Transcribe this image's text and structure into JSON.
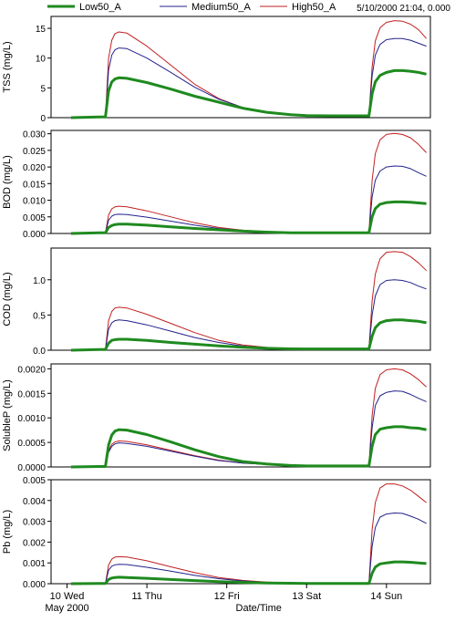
{
  "cursor_readout": "5/10/2000 21:04, 0.000",
  "legend": [
    {
      "name": "Low50_A",
      "color": "#1f8a1f",
      "width": 3
    },
    {
      "name": "Medium50_A",
      "color": "#22228b",
      "width": 1
    },
    {
      "name": "High50_A",
      "color": "#c02020",
      "width": 1
    }
  ],
  "x_axis": {
    "label": "Date/Time",
    "ticks": [
      {
        "day": 0,
        "label": "10 Wed"
      },
      {
        "day": 1,
        "label": "11 Thu"
      },
      {
        "day": 2,
        "label": "12 Fri"
      },
      {
        "day": 3,
        "label": "13 Sat"
      },
      {
        "day": 4,
        "label": "14 Sun"
      }
    ],
    "sublabel": "May 2000",
    "range_days": [
      -0.2,
      4.55
    ]
  },
  "chart_data": [
    {
      "type": "line",
      "ylabel": "TSS (mg/L)",
      "ylim": [
        0,
        17
      ],
      "yticks": [
        0,
        5,
        10,
        15
      ],
      "ytick_labels": [
        "0",
        "5",
        "10",
        "15"
      ],
      "x_units": "days since 10 May 2000 00:00",
      "series": [
        {
          "name": "Low50_A",
          "x": [
            0.05,
            0.4,
            0.48,
            0.52,
            0.56,
            0.6,
            0.65,
            0.75,
            1.0,
            1.3,
            1.6,
            1.9,
            2.2,
            2.5,
            2.8,
            3.0,
            3.3,
            3.6,
            3.78,
            3.82,
            3.86,
            3.92,
            4.0,
            4.1,
            4.2,
            4.3,
            4.4,
            4.5
          ],
          "values": [
            0,
            0.1,
            0.1,
            4.5,
            6.0,
            6.5,
            6.7,
            6.6,
            5.9,
            4.8,
            3.6,
            2.6,
            1.6,
            0.9,
            0.5,
            0.35,
            0.3,
            0.3,
            0.3,
            4.0,
            6.0,
            7.1,
            7.6,
            7.9,
            7.9,
            7.8,
            7.6,
            7.3
          ]
        },
        {
          "name": "Medium50_A",
          "x": [
            0.05,
            0.4,
            0.48,
            0.52,
            0.56,
            0.6,
            0.65,
            0.75,
            1.0,
            1.3,
            1.6,
            1.9,
            2.2,
            2.5,
            2.8,
            3.0,
            3.3,
            3.6,
            3.78,
            3.82,
            3.86,
            3.92,
            4.0,
            4.1,
            4.2,
            4.3,
            4.4,
            4.5
          ],
          "values": [
            0,
            0.1,
            0.1,
            8.0,
            10.5,
            11.4,
            11.7,
            11.6,
            10.0,
            7.6,
            5.1,
            3.1,
            1.7,
            0.9,
            0.5,
            0.35,
            0.3,
            0.3,
            0.3,
            7.0,
            10.5,
            12.3,
            13.1,
            13.3,
            13.3,
            13.0,
            12.5,
            12.0
          ]
        },
        {
          "name": "High50_A",
          "x": [
            0.05,
            0.4,
            0.48,
            0.52,
            0.56,
            0.6,
            0.65,
            0.75,
            1.0,
            1.3,
            1.6,
            1.9,
            2.2,
            2.5,
            2.8,
            3.0,
            3.3,
            3.6,
            3.78,
            3.82,
            3.86,
            3.92,
            4.0,
            4.1,
            4.2,
            4.3,
            4.4,
            4.5
          ],
          "values": [
            0,
            0.1,
            0.1,
            10.0,
            13.0,
            14.1,
            14.4,
            14.2,
            12.0,
            8.8,
            5.6,
            3.2,
            1.7,
            0.9,
            0.5,
            0.35,
            0.3,
            0.3,
            0.3,
            8.5,
            12.9,
            15.1,
            16.0,
            16.3,
            16.2,
            15.7,
            14.8,
            13.3
          ]
        }
      ]
    },
    {
      "type": "line",
      "ylabel": "BOD (mg/L)",
      "ylim": [
        0,
        0.031
      ],
      "yticks": [
        0,
        0.005,
        0.01,
        0.015,
        0.02,
        0.025,
        0.03
      ],
      "ytick_labels": [
        "0.000",
        "0.005",
        "0.010",
        "0.015",
        "0.020",
        "0.025",
        "0.030"
      ],
      "x_units": "days since 10 May 2000 00:00",
      "series": [
        {
          "name": "Low50_A",
          "x": [
            0.05,
            0.4,
            0.48,
            0.52,
            0.56,
            0.6,
            0.65,
            0.75,
            1.0,
            1.3,
            1.6,
            1.9,
            2.2,
            2.5,
            2.8,
            3.0,
            3.3,
            3.6,
            3.78,
            3.82,
            3.86,
            3.92,
            4.0,
            4.1,
            4.2,
            4.3,
            4.4,
            4.5
          ],
          "values": [
            0,
            0.0002,
            0.0002,
            0.0018,
            0.0024,
            0.0027,
            0.0028,
            0.0028,
            0.0025,
            0.002,
            0.0015,
            0.0011,
            0.0007,
            0.0004,
            0.0002,
            0.0002,
            0.0002,
            0.0002,
            0.0002,
            0.005,
            0.0075,
            0.0088,
            0.0093,
            0.0095,
            0.0095,
            0.0094,
            0.0092,
            0.009
          ]
        },
        {
          "name": "Medium50_A",
          "x": [
            0.05,
            0.4,
            0.48,
            0.52,
            0.56,
            0.6,
            0.65,
            0.75,
            1.0,
            1.3,
            1.6,
            1.9,
            2.2,
            2.5,
            2.8,
            3.0,
            3.3,
            3.6,
            3.78,
            3.82,
            3.86,
            3.92,
            4.0,
            4.1,
            4.2,
            4.3,
            4.4,
            4.5
          ],
          "values": [
            0,
            0.0002,
            0.0002,
            0.004,
            0.0052,
            0.0057,
            0.0058,
            0.0057,
            0.0049,
            0.0037,
            0.0025,
            0.0015,
            0.0009,
            0.0005,
            0.0002,
            0.0002,
            0.0002,
            0.0002,
            0.0002,
            0.011,
            0.016,
            0.0188,
            0.02,
            0.0203,
            0.0202,
            0.0195,
            0.0183,
            0.0172
          ]
        },
        {
          "name": "High50_A",
          "x": [
            0.05,
            0.4,
            0.48,
            0.52,
            0.56,
            0.6,
            0.65,
            0.75,
            1.0,
            1.3,
            1.6,
            1.9,
            2.2,
            2.5,
            2.8,
            3.0,
            3.3,
            3.6,
            3.78,
            3.82,
            3.86,
            3.92,
            4.0,
            4.1,
            4.2,
            4.3,
            4.4,
            4.5
          ],
          "values": [
            0,
            0.0002,
            0.0002,
            0.0056,
            0.0074,
            0.008,
            0.0082,
            0.008,
            0.0068,
            0.005,
            0.0032,
            0.0018,
            0.001,
            0.0005,
            0.0002,
            0.0002,
            0.0002,
            0.0002,
            0.0002,
            0.016,
            0.024,
            0.0282,
            0.0298,
            0.0301,
            0.0298,
            0.0288,
            0.0268,
            0.0243
          ]
        }
      ]
    },
    {
      "type": "line",
      "ylabel": "COD (mg/L)",
      "ylim": [
        0,
        1.45
      ],
      "yticks": [
        0,
        0.5,
        1.0
      ],
      "ytick_labels": [
        "0.0",
        "0.5",
        "1.0"
      ],
      "x_units": "days since 10 May 2000 00:00",
      "series": [
        {
          "name": "Low50_A",
          "x": [
            0.05,
            0.4,
            0.48,
            0.52,
            0.56,
            0.6,
            0.65,
            0.75,
            1.0,
            1.3,
            1.6,
            1.9,
            2.2,
            2.5,
            2.8,
            3.0,
            3.3,
            3.6,
            3.78,
            3.82,
            3.86,
            3.92,
            4.0,
            4.1,
            4.2,
            4.3,
            4.4,
            4.5
          ],
          "values": [
            0,
            0.01,
            0.01,
            0.1,
            0.14,
            0.15,
            0.155,
            0.155,
            0.14,
            0.11,
            0.085,
            0.062,
            0.042,
            0.027,
            0.02,
            0.018,
            0.018,
            0.018,
            0.018,
            0.2,
            0.32,
            0.39,
            0.42,
            0.43,
            0.43,
            0.42,
            0.41,
            0.39
          ]
        },
        {
          "name": "Medium50_A",
          "x": [
            0.05,
            0.4,
            0.48,
            0.52,
            0.56,
            0.6,
            0.65,
            0.75,
            1.0,
            1.3,
            1.6,
            1.9,
            2.2,
            2.5,
            2.8,
            3.0,
            3.3,
            3.6,
            3.78,
            3.82,
            3.86,
            3.92,
            4.0,
            4.1,
            4.2,
            4.3,
            4.4,
            4.5
          ],
          "values": [
            0,
            0.01,
            0.01,
            0.3,
            0.39,
            0.42,
            0.43,
            0.42,
            0.36,
            0.27,
            0.18,
            0.11,
            0.06,
            0.035,
            0.022,
            0.018,
            0.018,
            0.018,
            0.018,
            0.5,
            0.77,
            0.93,
            0.99,
            1.0,
            0.99,
            0.96,
            0.91,
            0.87
          ]
        },
        {
          "name": "High50_A",
          "x": [
            0.05,
            0.4,
            0.48,
            0.52,
            0.56,
            0.6,
            0.65,
            0.75,
            1.0,
            1.3,
            1.6,
            1.9,
            2.2,
            2.5,
            2.8,
            3.0,
            3.3,
            3.6,
            3.78,
            3.82,
            3.86,
            3.92,
            4.0,
            4.1,
            4.2,
            4.3,
            4.4,
            4.5
          ],
          "values": [
            0,
            0.01,
            0.01,
            0.42,
            0.55,
            0.6,
            0.61,
            0.6,
            0.51,
            0.38,
            0.25,
            0.14,
            0.075,
            0.04,
            0.022,
            0.018,
            0.018,
            0.018,
            0.018,
            0.7,
            1.08,
            1.3,
            1.39,
            1.4,
            1.39,
            1.33,
            1.24,
            1.13
          ]
        }
      ]
    },
    {
      "type": "line",
      "ylabel": "SolubleP (mg/L)",
      "ylim": [
        0,
        0.0021
      ],
      "yticks": [
        0,
        0.0005,
        0.001,
        0.0015,
        0.002
      ],
      "ytick_labels": [
        "0.0000",
        "0.0005",
        "0.0010",
        "0.0015",
        "0.0020"
      ],
      "x_units": "days since 10 May 2000 00:00",
      "series": [
        {
          "name": "Low50_A",
          "x": [
            0.05,
            0.4,
            0.48,
            0.52,
            0.56,
            0.6,
            0.65,
            0.75,
            1.0,
            1.3,
            1.6,
            1.9,
            2.2,
            2.5,
            2.8,
            3.0,
            3.3,
            3.6,
            3.78,
            3.82,
            3.86,
            3.92,
            4.0,
            4.1,
            4.2,
            4.3,
            4.4,
            4.5
          ],
          "values": [
            0,
            1e-05,
            1e-05,
            0.00045,
            0.00065,
            0.00073,
            0.00076,
            0.00075,
            0.00066,
            0.00051,
            0.00035,
            0.00021,
            0.00011,
            6e-05,
            3e-05,
            2e-05,
            2e-05,
            2e-05,
            2e-05,
            0.00042,
            0.00066,
            0.00077,
            0.0008,
            0.00082,
            0.00082,
            0.0008,
            0.00079,
            0.00076
          ]
        },
        {
          "name": "Medium50_A",
          "x": [
            0.05,
            0.4,
            0.48,
            0.52,
            0.56,
            0.6,
            0.65,
            0.75,
            1.0,
            1.3,
            1.6,
            1.9,
            2.2,
            2.5,
            2.8,
            3.0,
            3.3,
            3.6,
            3.78,
            3.82,
            3.86,
            3.92,
            4.0,
            4.1,
            4.2,
            4.3,
            4.4,
            4.5
          ],
          "values": [
            0,
            1e-05,
            1e-05,
            0.0003,
            0.00042,
            0.00047,
            0.00049,
            0.00048,
            0.00042,
            0.00032,
            0.00022,
            0.00013,
            8e-05,
            5e-05,
            3e-05,
            2e-05,
            2e-05,
            2e-05,
            2e-05,
            0.0008,
            0.00125,
            0.00145,
            0.00152,
            0.00155,
            0.00154,
            0.00148,
            0.0014,
            0.00133
          ]
        },
        {
          "name": "High50_A",
          "x": [
            0.05,
            0.4,
            0.48,
            0.52,
            0.56,
            0.6,
            0.65,
            0.75,
            1.0,
            1.3,
            1.6,
            1.9,
            2.2,
            2.5,
            2.8,
            3.0,
            3.3,
            3.6,
            3.78,
            3.82,
            3.86,
            3.92,
            4.0,
            4.1,
            4.2,
            4.3,
            4.4,
            4.5
          ],
          "values": [
            0,
            1e-05,
            1e-05,
            0.00033,
            0.00046,
            0.00051,
            0.00053,
            0.00052,
            0.00045,
            0.00034,
            0.00023,
            0.00014,
            8e-05,
            5e-05,
            3e-05,
            2e-05,
            2e-05,
            2e-05,
            2e-05,
            0.00105,
            0.0016,
            0.00188,
            0.00198,
            0.002,
            0.00198,
            0.0019,
            0.00178,
            0.00163
          ]
        }
      ]
    },
    {
      "type": "line",
      "ylabel": "Pb (mg/L)",
      "ylim": [
        0,
        0.005
      ],
      "yticks": [
        0,
        0.001,
        0.002,
        0.003,
        0.004,
        0.005
      ],
      "ytick_labels": [
        "0.000",
        "0.001",
        "0.002",
        "0.003",
        "0.004",
        "0.005"
      ],
      "x_units": "days since 10 May 2000 00:00",
      "series": [
        {
          "name": "Low50_A",
          "x": [
            0.05,
            0.4,
            0.48,
            0.52,
            0.56,
            0.6,
            0.65,
            0.75,
            1.0,
            1.3,
            1.6,
            1.9,
            2.2,
            2.5,
            2.8,
            3.0,
            3.3,
            3.6,
            3.78,
            3.82,
            3.86,
            3.92,
            4.0,
            4.1,
            4.2,
            4.3,
            4.4,
            4.5
          ],
          "values": [
            0,
            1e-05,
            1e-05,
            0.0002,
            0.00027,
            0.0003,
            0.00031,
            0.0003,
            0.00026,
            0.0002,
            0.00015,
            0.0001,
            6e-05,
            3e-05,
            2e-05,
            1e-05,
            1e-05,
            1e-05,
            1e-05,
            0.0005,
            0.0008,
            0.00095,
            0.001,
            0.00105,
            0.00105,
            0.00103,
            0.001,
            0.00097
          ]
        },
        {
          "name": "Medium50_A",
          "x": [
            0.05,
            0.4,
            0.48,
            0.52,
            0.56,
            0.6,
            0.65,
            0.75,
            1.0,
            1.3,
            1.6,
            1.9,
            2.2,
            2.5,
            2.8,
            3.0,
            3.3,
            3.6,
            3.78,
            3.82,
            3.86,
            3.92,
            4.0,
            4.1,
            4.2,
            4.3,
            4.4,
            4.5
          ],
          "values": [
            0,
            1e-05,
            1e-05,
            0.00065,
            0.00084,
            0.00091,
            0.00093,
            0.00092,
            0.00079,
            0.0006,
            0.0004,
            0.00024,
            0.00013,
            6e-05,
            3e-05,
            2e-05,
            1e-05,
            1e-05,
            1e-05,
            0.0018,
            0.0027,
            0.0032,
            0.00335,
            0.0034,
            0.00338,
            0.00325,
            0.0031,
            0.0029
          ]
        },
        {
          "name": "High50_A",
          "x": [
            0.05,
            0.4,
            0.48,
            0.52,
            0.56,
            0.6,
            0.65,
            0.75,
            1.0,
            1.3,
            1.6,
            1.9,
            2.2,
            2.5,
            2.8,
            3.0,
            3.3,
            3.6,
            3.78,
            3.82,
            3.86,
            3.92,
            4.0,
            4.1,
            4.2,
            4.3,
            4.4,
            4.5
          ],
          "values": [
            0,
            1e-05,
            1e-05,
            0.0009,
            0.00118,
            0.00128,
            0.0013,
            0.00128,
            0.0011,
            0.00081,
            0.00053,
            0.0003,
            0.00016,
            8e-05,
            4e-05,
            2e-05,
            1e-05,
            1e-05,
            1e-05,
            0.0026,
            0.0039,
            0.0046,
            0.0048,
            0.0048,
            0.0047,
            0.0045,
            0.0042,
            0.0039
          ]
        }
      ]
    }
  ]
}
